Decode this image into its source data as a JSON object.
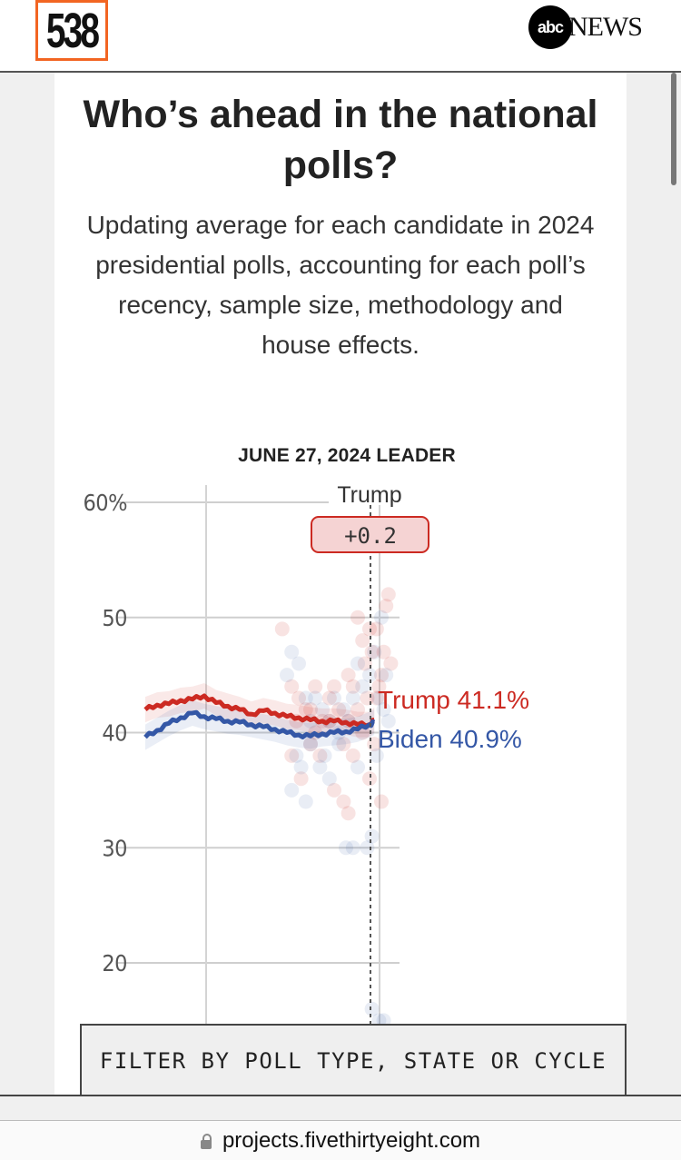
{
  "header": {
    "logo_text": "538",
    "partner_logo_circle": "abc",
    "partner_logo_text": "NEWS"
  },
  "page": {
    "title": "Who’s ahead in the national polls?",
    "subtitle": "Updating average for each candidate in 2024 presidential polls, accounting for each poll’s recency, sample size, methodology and house effects."
  },
  "filter_button": {
    "label": "FILTER BY POLL TYPE, STATE OR CYCLE"
  },
  "browser": {
    "url": "projects.fivethirtyeight.com",
    "lock_icon": "lock-icon"
  },
  "colors": {
    "trump": "#cc2a22",
    "biden": "#3457a6",
    "badge_bg": "#f5d3d3",
    "badge_border": "#cc2a22",
    "brand_orange": "#f26522"
  },
  "chart_data": {
    "type": "line",
    "title": "JUNE 27, 2024 LEADER",
    "leader": {
      "name": "Trump",
      "margin_label": "+0.2"
    },
    "xlabel": "",
    "ylabel": "",
    "ylim": [
      15,
      62
    ],
    "yticks": [
      {
        "value": 60,
        "label": "60%"
      },
      {
        "value": 50,
        "label": "50"
      },
      {
        "value": 40,
        "label": "40"
      },
      {
        "value": 30,
        "label": "30"
      },
      {
        "value": 20,
        "label": "20"
      }
    ],
    "x_domain": [
      0,
      100
    ],
    "x_gridlines": [
      25,
      100
    ],
    "current_date_x": 97,
    "grid": true,
    "series": [
      {
        "name": "Trump",
        "end_label": "Trump 41.1%",
        "color": "#cc2a22",
        "x": [
          0,
          5,
          10,
          15,
          20,
          25,
          30,
          35,
          40,
          45,
          50,
          55,
          60,
          65,
          70,
          75,
          80,
          85,
          90,
          95,
          97
        ],
        "values": [
          42.0,
          42.4,
          42.5,
          42.8,
          42.9,
          43.2,
          42.6,
          42.3,
          42.0,
          41.6,
          41.9,
          41.7,
          41.4,
          41.3,
          41.1,
          41.0,
          41.0,
          40.9,
          40.7,
          40.7,
          41.1
        ]
      },
      {
        "name": "Biden",
        "end_label": "Biden 40.9%",
        "color": "#3457a6",
        "x": [
          0,
          5,
          10,
          15,
          20,
          25,
          30,
          35,
          40,
          45,
          50,
          55,
          60,
          65,
          70,
          75,
          80,
          85,
          90,
          95,
          97
        ],
        "values": [
          39.6,
          40.2,
          40.8,
          41.3,
          41.7,
          41.4,
          41.2,
          41.0,
          40.9,
          40.7,
          40.5,
          40.3,
          40.0,
          39.8,
          39.7,
          39.9,
          40.0,
          40.1,
          40.3,
          40.7,
          40.9
        ]
      }
    ],
    "polls": {
      "trump": [
        [
          58,
          49
        ],
        [
          62,
          44
        ],
        [
          65,
          43
        ],
        [
          68,
          42
        ],
        [
          70,
          42
        ],
        [
          72,
          44
        ],
        [
          75,
          41
        ],
        [
          78,
          43
        ],
        [
          80,
          44
        ],
        [
          82,
          42
        ],
        [
          84,
          39
        ],
        [
          86,
          45
        ],
        [
          88,
          44
        ],
        [
          90,
          50
        ],
        [
          92,
          48
        ],
        [
          93,
          46
        ],
        [
          95,
          49
        ],
        [
          96,
          47
        ],
        [
          98,
          49
        ],
        [
          99,
          44
        ],
        [
          100,
          45
        ],
        [
          101,
          47
        ],
        [
          102,
          51
        ],
        [
          103,
          52
        ],
        [
          104,
          46
        ],
        [
          62,
          38
        ],
        [
          66,
          36
        ],
        [
          70,
          39
        ],
        [
          74,
          38
        ],
        [
          80,
          35
        ],
        [
          84,
          34
        ],
        [
          86,
          33
        ],
        [
          88,
          38
        ],
        [
          92,
          40
        ],
        [
          95,
          36
        ],
        [
          97,
          39
        ],
        [
          100,
          34
        ],
        [
          64,
          41
        ],
        [
          72,
          40
        ],
        [
          78,
          41
        ],
        [
          86,
          41
        ],
        [
          90,
          42
        ],
        [
          94,
          43
        ],
        [
          98,
          43
        ]
      ],
      "biden": [
        [
          60,
          45
        ],
        [
          62,
          47
        ],
        [
          65,
          46
        ],
        [
          68,
          43
        ],
        [
          70,
          41
        ],
        [
          72,
          43
        ],
        [
          75,
          42
        ],
        [
          78,
          41
        ],
        [
          80,
          43
        ],
        [
          82,
          40
        ],
        [
          84,
          42
        ],
        [
          86,
          41
        ],
        [
          88,
          43
        ],
        [
          90,
          46
        ],
        [
          92,
          44
        ],
        [
          95,
          45
        ],
        [
          97,
          47
        ],
        [
          99,
          43
        ],
        [
          100,
          50
        ],
        [
          101,
          42
        ],
        [
          102,
          45
        ],
        [
          103,
          41
        ],
        [
          64,
          38
        ],
        [
          66,
          37
        ],
        [
          70,
          39
        ],
        [
          74,
          37
        ],
        [
          78,
          36
        ],
        [
          82,
          39
        ],
        [
          85,
          30
        ],
        [
          88,
          30
        ],
        [
          94,
          30
        ],
        [
          96,
          31
        ],
        [
          96,
          16
        ],
        [
          99,
          15
        ],
        [
          101,
          15
        ],
        [
          62,
          35
        ],
        [
          68,
          34
        ],
        [
          76,
          38
        ],
        [
          90,
          37
        ],
        [
          98,
          38
        ]
      ]
    }
  }
}
